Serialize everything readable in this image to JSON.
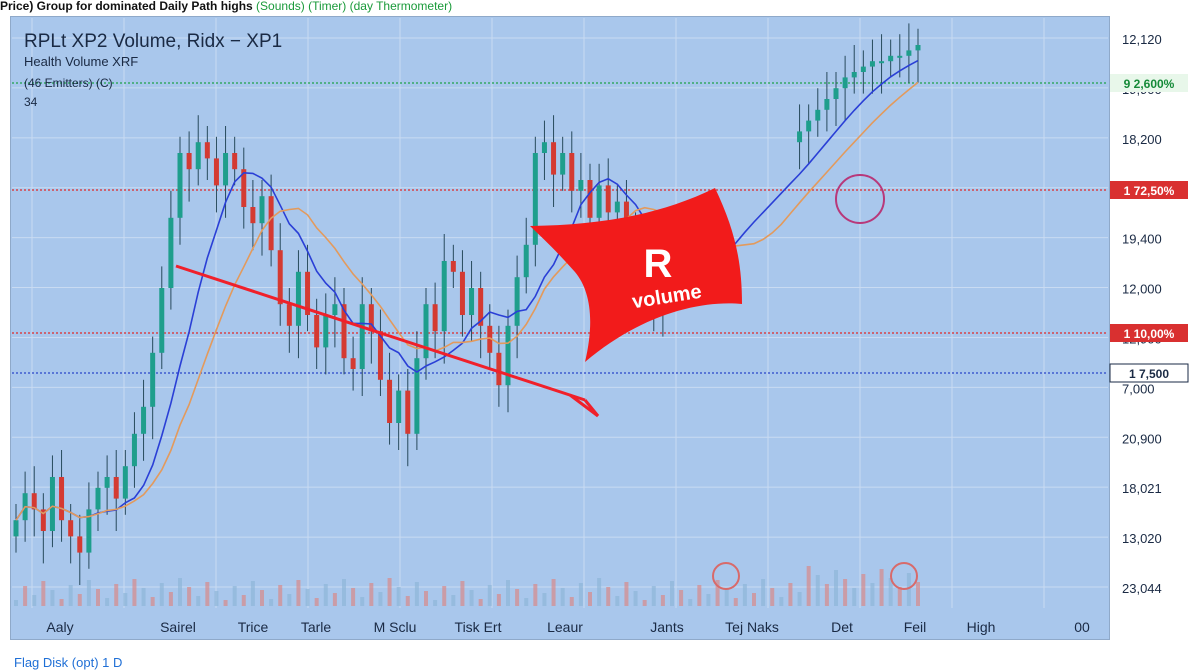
{
  "header": {
    "caption": "Price) Group for dominated Daily Path highs",
    "caption_green": "(Sounds) (Timer) (day Thermometer)"
  },
  "legend": {
    "title": "RPLt XP2 Volume, Ridx − XP1",
    "line1": "Health Volume XRF",
    "line2": "(46 Emitters) (C)",
    "line3": "34"
  },
  "annotation": {
    "letter": "R",
    "word": "volume"
  },
  "bottom_note": "Flag Disk (opt) 1 D",
  "colors": {
    "background": "#a9c7ec",
    "bull": "#1e9e8c",
    "bear": "#d43a32",
    "trendline": "#f0202a",
    "blue_ma": "#2a3fd6",
    "orange_ma": "#e39a5c",
    "green_level": "#1fa34a",
    "red_level": "#e02a2a",
    "blue_level": "#2a45c8"
  },
  "chart_data": {
    "type": "candlestick",
    "x_labels": [
      "Aaly",
      "Sairel",
      "Trice",
      "Tarle",
      "M Sclu",
      "Tisk Ert",
      "Leaur",
      "Jants",
      "Tej Naks",
      "Det",
      "Feil",
      "High",
      "00"
    ],
    "y_labels": [
      "12,120",
      "19,900",
      "18,200",
      "10,000",
      "19,400",
      "12,000",
      "12,900",
      "7,000",
      "20,900",
      "18,021",
      "13,020",
      "23,044"
    ],
    "levels": [
      {
        "label": "9 2,600%",
        "color": "green",
        "style": "dotted"
      },
      {
        "label": "1 72,50%",
        "color": "red",
        "style": "dotted"
      },
      {
        "label": "1 10,00%",
        "color": "red",
        "style": "dotted"
      },
      {
        "label": "1 7,500",
        "color": "blue",
        "style": "dotted"
      }
    ],
    "y_range": [
      0,
      100
    ],
    "closes": [
      12,
      17,
      14,
      10,
      20,
      12,
      9,
      6,
      14,
      18,
      20,
      16,
      22,
      28,
      33,
      43,
      55,
      68,
      80,
      77,
      82,
      79,
      74,
      80,
      77,
      70,
      67,
      72,
      62,
      52,
      48,
      58,
      50,
      44,
      50,
      52,
      42,
      40,
      52,
      47,
      38,
      30,
      36,
      28,
      42,
      52,
      47,
      60,
      58,
      50,
      55,
      48,
      43,
      37,
      48,
      57,
      63,
      80,
      82,
      76,
      80,
      73,
      75,
      68,
      74,
      69,
      71,
      64,
      60,
      56,
      52,
      54,
      57,
      60,
      62,
      64,
      66,
      68,
      69,
      70,
      72,
      74,
      76,
      78,
      80,
      82,
      84,
      86,
      88,
      90,
      92,
      94,
      95,
      96,
      97,
      97,
      98,
      98,
      99,
      100
    ],
    "candles_visible": 72,
    "series": [
      {
        "name": "",
        "role": "blue moving average"
      },
      {
        "name": "",
        "role": "orange moving average"
      }
    ]
  }
}
